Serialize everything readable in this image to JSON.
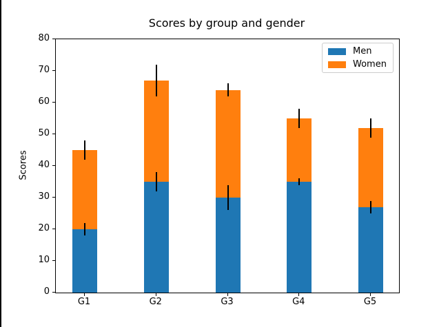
{
  "chart_data": {
    "type": "bar",
    "stacked": true,
    "title": "Scores by group and gender",
    "xlabel": "",
    "ylabel": "Scores",
    "categories": [
      "G1",
      "G2",
      "G3",
      "G4",
      "G5"
    ],
    "series": [
      {
        "name": "Men",
        "color": "#1f77b4",
        "values": [
          20,
          35,
          30,
          35,
          27
        ],
        "std": [
          2,
          3,
          4,
          1,
          2
        ]
      },
      {
        "name": "Women",
        "color": "#ff7f0e",
        "values": [
          25,
          32,
          34,
          20,
          25
        ],
        "std": [
          3,
          5,
          2,
          3,
          3
        ]
      }
    ],
    "stack_totals": [
      45,
      67,
      64,
      55,
      52
    ],
    "ylim": [
      0,
      80
    ],
    "yticks": [
      0,
      10,
      20,
      30,
      40,
      50,
      60,
      70,
      80
    ],
    "grid": false,
    "legend_position": "upper right",
    "error_bar_color": "#000000",
    "background_color": "#ffffff",
    "spine_color": "#000000"
  }
}
